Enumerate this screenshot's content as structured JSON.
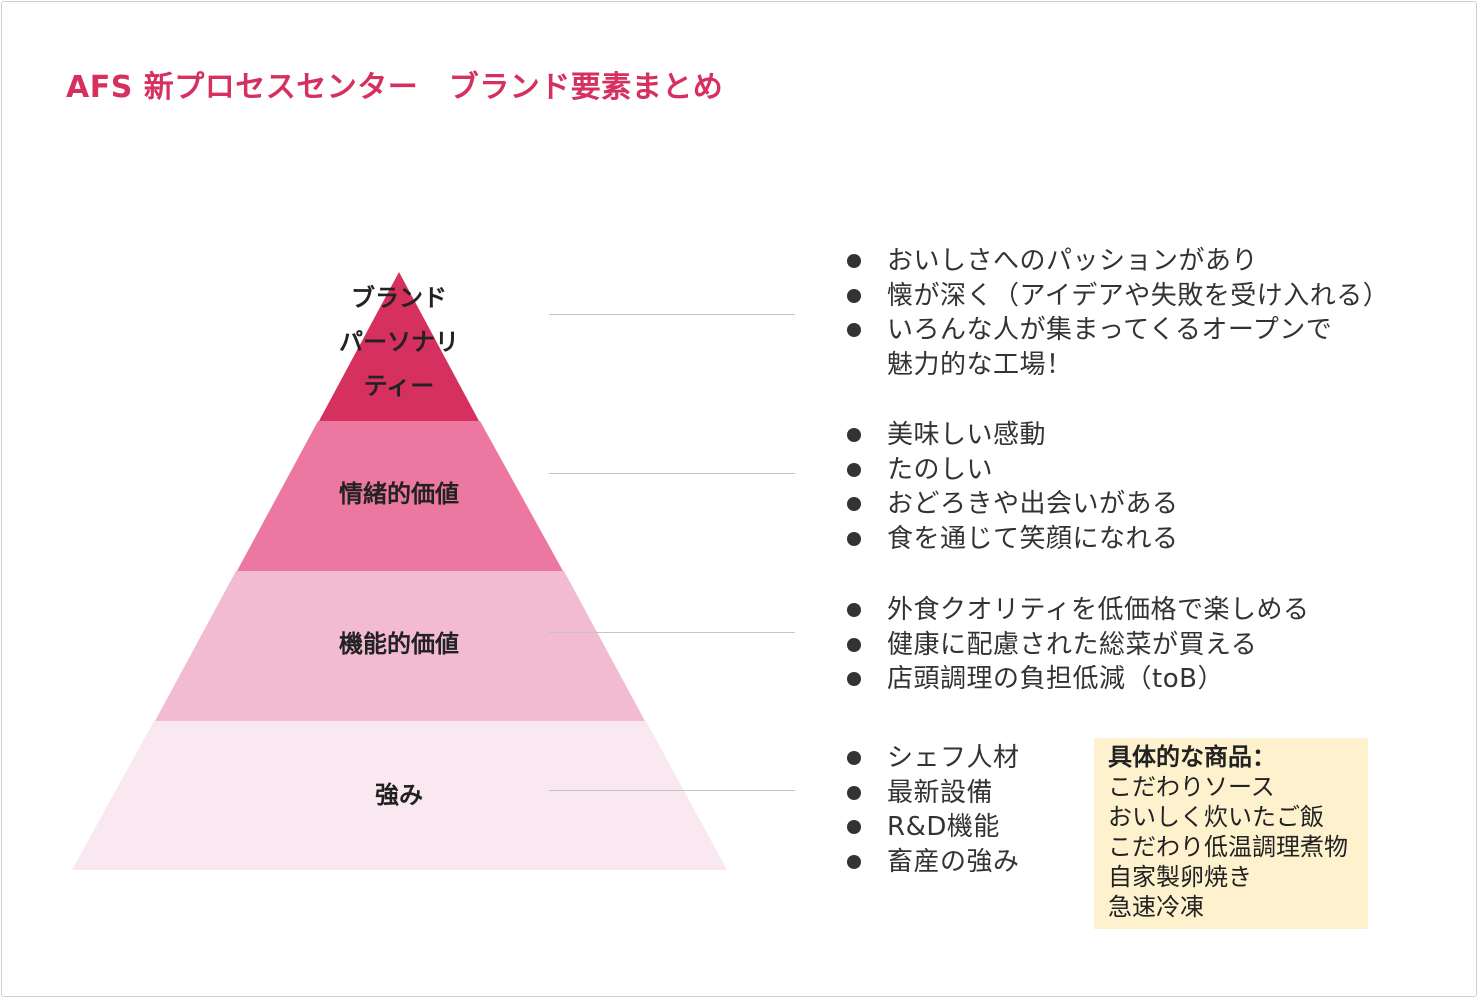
{
  "title": "AFS 新プロセスセンター　ブランド要素まとめ",
  "colors": {
    "title": "#d6305f",
    "layer_top": "#d6305f",
    "layer_emotional": "#ec77a0",
    "layer_functional": "#f3bbd2",
    "layer_strength": "#f9e8f0",
    "product_box": "#fdf1ce"
  },
  "pyramid": {
    "layers": [
      {
        "label_lines": [
          "ブランド",
          "パーソナリ",
          "ティー"
        ]
      },
      {
        "label": "情緒的価値"
      },
      {
        "label": "機能的価値"
      },
      {
        "label": "強み"
      }
    ]
  },
  "lists": [
    {
      "items": [
        "おいしさへのパッションがあり",
        "懐が深く（アイデアや失敗を受け入れる）",
        "いろんな人が集まってくるオープンで",
        "魅力的な工場！"
      ],
      "bullets": [
        true,
        true,
        true,
        false
      ]
    },
    {
      "items": [
        "美味しい感動",
        "たのしい",
        "おどろきや出会いがある",
        "食を通じて笑顔になれる"
      ],
      "bullets": [
        true,
        true,
        true,
        true
      ]
    },
    {
      "items": [
        "外食クオリティを低価格で楽しめる",
        "健康に配慮された総菜が買える",
        "店頭調理の負担低減（toB）"
      ],
      "bullets": [
        true,
        true,
        true
      ]
    },
    {
      "items": [
        "シェフ人材",
        "最新設備",
        "R&D機能",
        "畜産の強み"
      ],
      "bullets": [
        true,
        true,
        true,
        true
      ]
    }
  ],
  "product_box": {
    "heading": "具体的な商品：",
    "items": [
      "こだわりソース",
      "おいしく炊いたご飯",
      "こだわり低温調理煮物",
      "自家製卵焼き",
      "急速冷凍"
    ]
  }
}
